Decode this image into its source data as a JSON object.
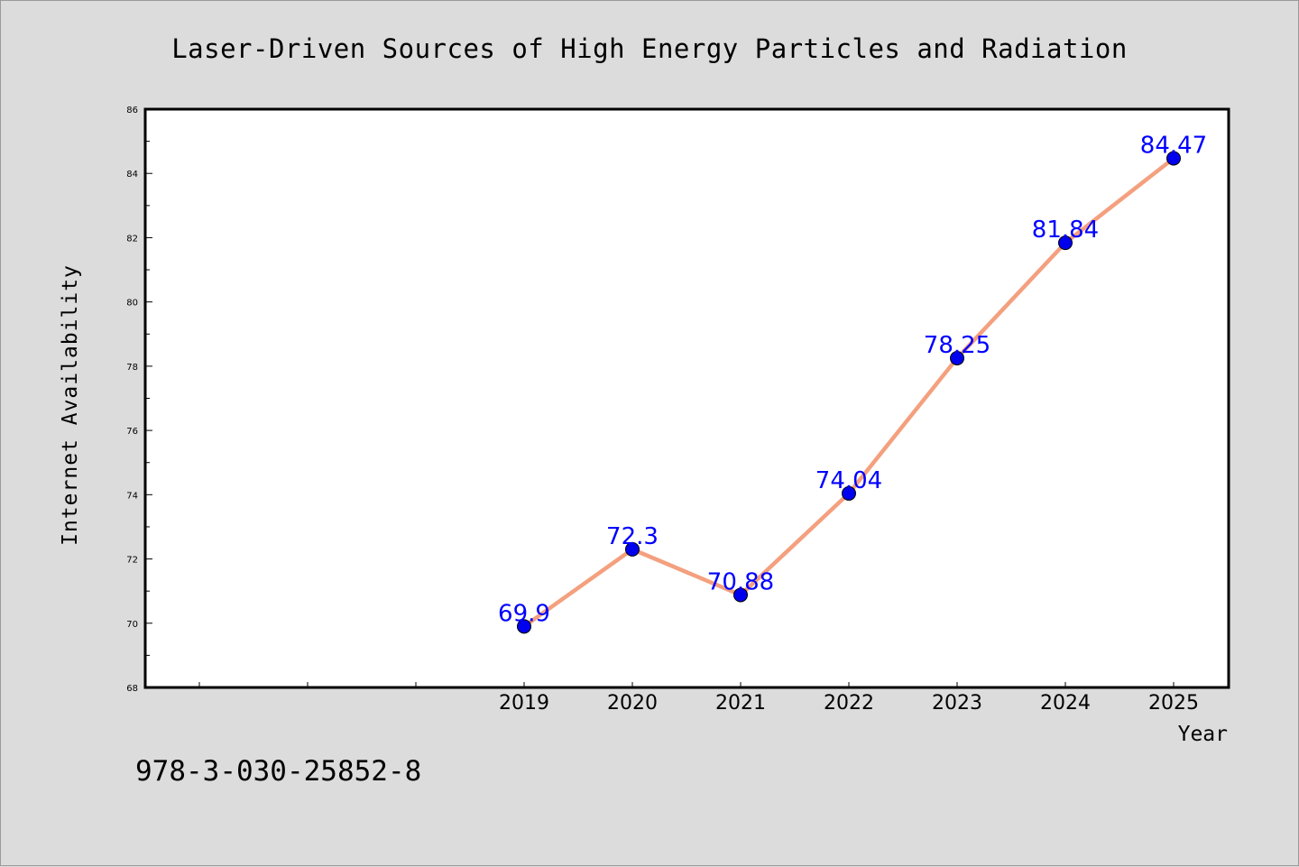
{
  "chart_data": {
    "type": "line",
    "title": "Laser-Driven Sources of High Energy Particles and Radiation",
    "xlabel": "Year",
    "ylabel": "Internet Availability",
    "categories": [
      "2019",
      "2020",
      "2021",
      "2022",
      "2023",
      "2024",
      "2025"
    ],
    "series": [
      {
        "values": [
          69.9,
          72.3,
          70.88,
          74.04,
          78.25,
          81.84,
          84.47
        ]
      }
    ],
    "data_labels": [
      "69.9",
      "72.3",
      "70.88",
      "74.04",
      "78.25",
      "81.84",
      "84.47"
    ],
    "ylim": [
      68,
      86
    ],
    "yticks": [
      "68",
      "70",
      "72",
      "74",
      "76",
      "78",
      "80",
      "82",
      "84",
      "86"
    ],
    "grid": false,
    "legend": "none"
  },
  "footer": {
    "isbn": "978-3-030-25852-8"
  },
  "colors": {
    "background": "#dcdcdc",
    "plot_background": "#ffffff",
    "line": "#f4a07f",
    "marker": "#0000ee",
    "data_label": "#0000ff"
  }
}
